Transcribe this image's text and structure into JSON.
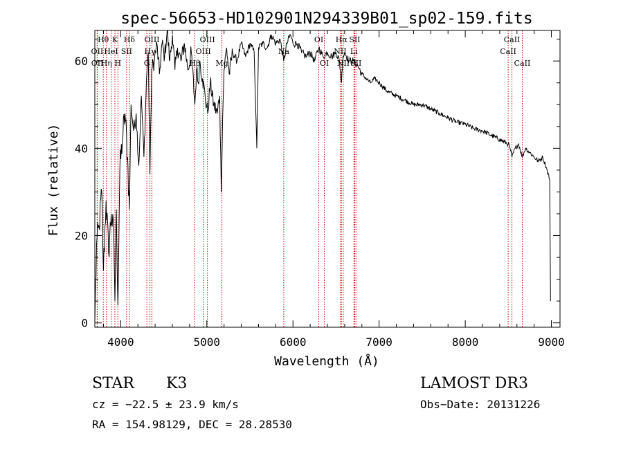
{
  "chart_data": {
    "type": "line",
    "title": "spec-56653-HD102901N294339B01_sp02-159.fits",
    "xlabel": "Wavelength (Å)",
    "ylabel": "Flux (relative)",
    "xlim": [
      3700,
      9100
    ],
    "ylim": [
      -1,
      67
    ],
    "xticks": [
      4000,
      5000,
      6000,
      7000,
      8000,
      9000
    ],
    "yticks": [
      0,
      20,
      40,
      60
    ],
    "grid": false,
    "series": [
      {
        "name": "flux",
        "x": [
          3700,
          3720,
          3750,
          3780,
          3800,
          3830,
          3860,
          3890,
          3920,
          3933,
          3950,
          3968,
          3990,
          4020,
          4050,
          4080,
          4101,
          4120,
          4150,
          4180,
          4210,
          4240,
          4270,
          4300,
          4320,
          4340,
          4360,
          4390,
          4420,
          4450,
          4480,
          4510,
          4540,
          4570,
          4600,
          4630,
          4660,
          4700,
          4740,
          4780,
          4820,
          4861,
          4880,
          4900,
          4920,
          4950,
          4980,
          5010,
          5040,
          5080,
          5120,
          5150,
          5167,
          5183,
          5200,
          5230,
          5260,
          5300,
          5350,
          5400,
          5450,
          5500,
          5550,
          5580,
          5600,
          5650,
          5700,
          5750,
          5800,
          5850,
          5893,
          5930,
          5970,
          6000,
          6050,
          6100,
          6150,
          6200,
          6250,
          6300,
          6350,
          6400,
          6450,
          6500,
          6540,
          6563,
          6580,
          6600,
          6650,
          6700,
          6750,
          6800,
          6850,
          6900,
          6950,
          7000,
          7100,
          7200,
          7300,
          7400,
          7500,
          7600,
          7700,
          7800,
          7900,
          8000,
          8100,
          8200,
          8300,
          8400,
          8498,
          8520,
          8542,
          8580,
          8620,
          8662,
          8700,
          8750,
          8800,
          8850,
          8900,
          8950,
          8980,
          8990
        ],
        "values": [
          0,
          18,
          22,
          30,
          12,
          28,
          16,
          25,
          20,
          5,
          26,
          4,
          35,
          42,
          48,
          38,
          26,
          50,
          44,
          48,
          36,
          52,
          38,
          56,
          62,
          34,
          58,
          60,
          64,
          57,
          64,
          61,
          67,
          60,
          66,
          58,
          63,
          60,
          64,
          58,
          62,
          50,
          58,
          55,
          60,
          56,
          52,
          48,
          55,
          50,
          48,
          52,
          30,
          47,
          58,
          63,
          57,
          62,
          60,
          64,
          61,
          64,
          62,
          40,
          63,
          64,
          63,
          66,
          64,
          65,
          60,
          64,
          66,
          64,
          64,
          62,
          61,
          62,
          60,
          63,
          61,
          62,
          61,
          62,
          60,
          55,
          61,
          62,
          60,
          60,
          59,
          57,
          56,
          55,
          56,
          55,
          53,
          52,
          51,
          50,
          50,
          49,
          48,
          47,
          46,
          45.5,
          44.5,
          44,
          43,
          42,
          41,
          40,
          38,
          40,
          41,
          38,
          40,
          39,
          38,
          37,
          38,
          35,
          33,
          5
        ]
      }
    ],
    "lines": [
      {
        "label": "Hθ",
        "wavelength": 3798,
        "row": 1
      },
      {
        "label": "OII",
        "wavelength": 3727,
        "row": 2
      },
      {
        "label": "OII",
        "wavelength": 3729,
        "row": 3
      },
      {
        "label": "K",
        "wavelength": 3933,
        "row": 1
      },
      {
        "label": "HeI",
        "wavelength": 3889,
        "row": 2
      },
      {
        "label": "Hη",
        "wavelength": 3835,
        "row": 3
      },
      {
        "label": "Hδ",
        "wavelength": 4101,
        "row": 1
      },
      {
        "label": "SII",
        "wavelength": 4069,
        "row": 2
      },
      {
        "label": "H",
        "wavelength": 3968,
        "row": 3
      },
      {
        "label": "OIII",
        "wavelength": 4363,
        "row": 1
      },
      {
        "label": "Hγ",
        "wavelength": 4340,
        "row": 2
      },
      {
        "label": "G",
        "wavelength": 4304,
        "row": 3
      },
      {
        "label": "OIII",
        "wavelength": 5007,
        "row": 1
      },
      {
        "label": "OIII",
        "wavelength": 4959,
        "row": 2
      },
      {
        "label": "Hβ",
        "wavelength": 4861,
        "row": 3
      },
      {
        "label": "Mg",
        "wavelength": 5175,
        "row": 3
      },
      {
        "label": "Na",
        "wavelength": 5893,
        "row": 2
      },
      {
        "label": "OI",
        "wavelength": 6300,
        "row": 1
      },
      {
        "label": "OI",
        "wavelength": 6364,
        "row": 3
      },
      {
        "label": "Hα",
        "wavelength": 6563,
        "row": 1
      },
      {
        "label": "SII",
        "wavelength": 6717,
        "row": 1
      },
      {
        "label": "NII",
        "wavelength": 6548,
        "row": 2
      },
      {
        "label": "Li",
        "wavelength": 6708,
        "row": 2
      },
      {
        "label": "NII",
        "wavelength": 6584,
        "row": 3
      },
      {
        "label": "SII",
        "wavelength": 6731,
        "row": 3
      },
      {
        "label": "CaII",
        "wavelength": 8542,
        "row": 1
      },
      {
        "label": "CaII",
        "wavelength": 8498,
        "row": 2
      },
      {
        "label": "CaII",
        "wavelength": 8662,
        "row": 3
      }
    ],
    "line_color": "#cc0000"
  },
  "info": {
    "obj_class": "STAR",
    "subclass": "K3",
    "survey": "LAMOST DR3",
    "cz": "cz = −22.5 ± 23.9 km/s",
    "obs_date": "Obs−Date: 20131226",
    "coords": "RA = 154.98129, DEC =  28.28530"
  }
}
